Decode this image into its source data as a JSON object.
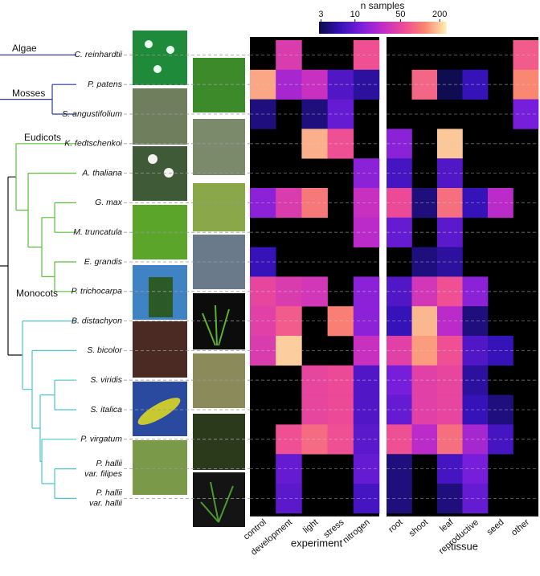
{
  "chart_data": {
    "type": "heatmap",
    "rows": [
      "C. reinhardtii",
      "P. patens",
      "S. angustifolium",
      "K. fedtschenkoi",
      "A. thaliana",
      "G. max",
      "M. truncatula",
      "E. grandis",
      "P. trichocarpa",
      "B. distachyon",
      "S. bicolor",
      "S. viridis",
      "S. italica",
      "P. virgatum",
      [
        "P. hallii",
        "var. filipes"
      ],
      [
        "P. hallii",
        "var. hallii"
      ]
    ],
    "clades": [
      "Algae",
      "Mosses",
      "Eudicots",
      "Monocots"
    ],
    "panels": [
      {
        "xlabel": "experiment",
        "categories": [
          "control",
          "development",
          "light",
          "stress",
          "nitrogen"
        ],
        "values": [
          [
            null,
            40,
            null,
            null,
            60
          ],
          [
            150,
            20,
            30,
            8,
            5
          ],
          [
            4,
            null,
            4,
            10,
            null
          ],
          [
            null,
            null,
            160,
            60,
            null
          ],
          [
            null,
            null,
            null,
            null,
            15
          ],
          [
            15,
            40,
            100,
            null,
            30
          ],
          [
            null,
            null,
            null,
            null,
            25
          ],
          [
            6,
            null,
            null,
            null,
            null
          ],
          [
            50,
            40,
            35,
            null,
            15
          ],
          [
            45,
            70,
            null,
            110,
            15
          ],
          [
            40,
            200,
            null,
            null,
            30
          ],
          [
            null,
            null,
            50,
            55,
            8
          ],
          [
            null,
            null,
            50,
            55,
            8
          ],
          [
            null,
            60,
            85,
            60,
            9
          ],
          [
            null,
            10,
            null,
            null,
            10
          ],
          [
            null,
            9,
            null,
            null,
            7
          ]
        ]
      },
      {
        "xlabel": "tissue",
        "categories": [
          "root",
          "shoot",
          "leaf",
          "reproductive",
          "seed",
          "other"
        ],
        "values": [
          [
            null,
            null,
            null,
            null,
            null,
            70
          ],
          [
            null,
            80,
            3,
            6,
            null,
            120
          ],
          [
            null,
            null,
            null,
            null,
            null,
            12
          ],
          [
            15,
            null,
            190,
            null,
            null,
            null
          ],
          [
            7,
            null,
            8,
            null,
            null,
            null
          ],
          [
            55,
            4,
            90,
            6,
            25,
            null
          ],
          [
            10,
            null,
            9,
            null,
            null,
            null
          ],
          [
            null,
            4,
            5,
            null,
            null,
            null
          ],
          [
            8,
            35,
            60,
            15,
            null,
            null
          ],
          [
            6,
            170,
            25,
            4,
            null,
            null
          ],
          [
            45,
            140,
            60,
            8,
            6,
            null
          ],
          [
            12,
            45,
            50,
            5,
            null,
            null
          ],
          [
            10,
            45,
            50,
            6,
            4,
            null
          ],
          [
            60,
            25,
            90,
            20,
            7,
            null
          ],
          [
            4,
            null,
            7,
            12,
            null,
            null
          ],
          [
            4,
            null,
            4,
            10,
            null,
            null
          ]
        ]
      }
    ],
    "colorbar": {
      "title": "n samples",
      "log": true,
      "lim": [
        2.8,
        250
      ],
      "ticks": [
        3,
        10,
        50,
        200
      ],
      "colormap": [
        "#0b0c48",
        "#3512b8",
        "#7a1fdc",
        "#c02cc8",
        "#ee4a98",
        "#fa8570",
        "#fdedb0"
      ]
    },
    "missing_color": "#000000"
  }
}
